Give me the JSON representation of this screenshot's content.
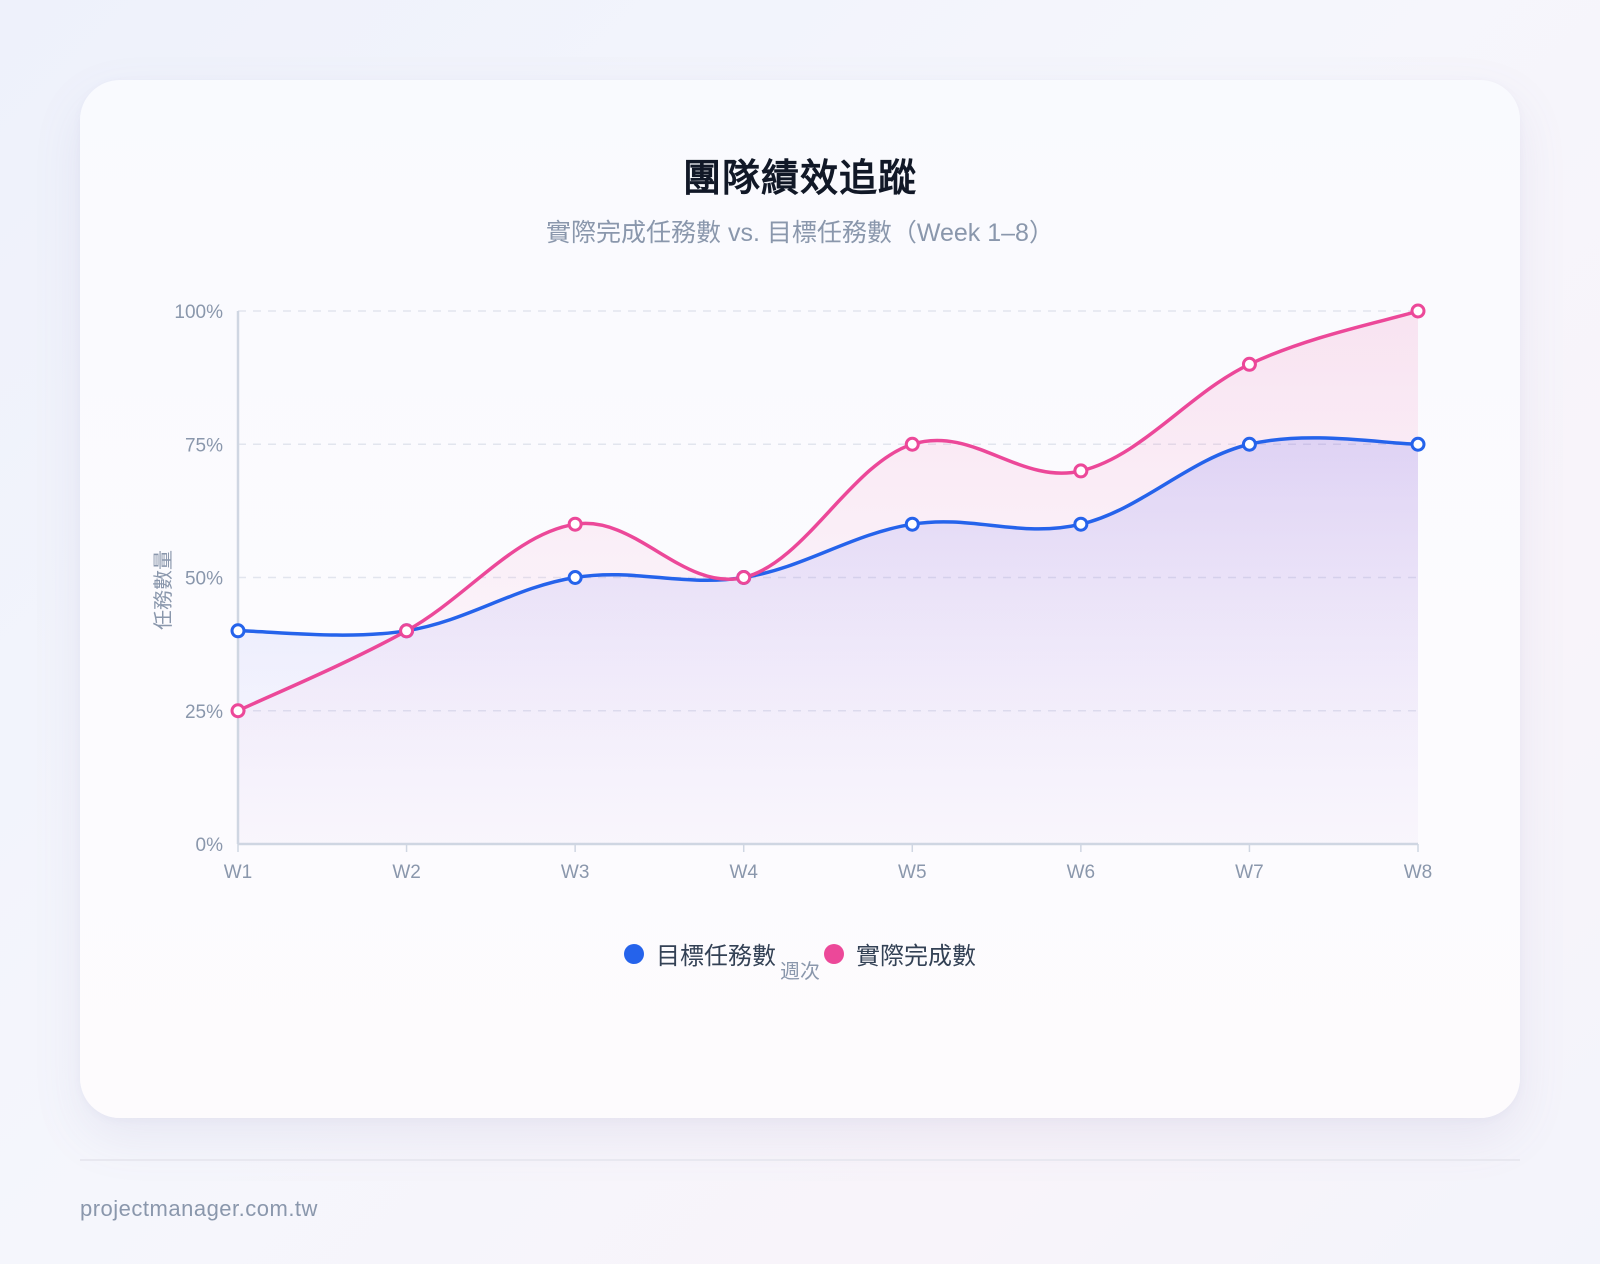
{
  "card": {
    "title": "團隊績效追蹤",
    "subtitle": "實際完成任務數 vs. 目標任務數（Week 1–8）"
  },
  "legend": {
    "items": [
      {
        "label": "目標任務數",
        "color": "#2563eb"
      },
      {
        "label": "實際完成數",
        "color": "#ec4899"
      }
    ]
  },
  "footer": {
    "site": "projectmanager.com.tw"
  },
  "chart_data": {
    "type": "area",
    "title": "團隊績效追蹤",
    "subtitle": "實際完成任務數 vs. 目標任務數（Week 1–8）",
    "xlabel": "週次",
    "ylabel": "任務數量",
    "categories": [
      "W1",
      "W2",
      "W3",
      "W4",
      "W5",
      "W6",
      "W7",
      "W8"
    ],
    "yticks": [
      "0%",
      "25%",
      "50%",
      "75%",
      "100%"
    ],
    "ylim": [
      0,
      100
    ],
    "grid": true,
    "legend_position": "bottom",
    "series": [
      {
        "name": "目標任務數",
        "color": "#2563eb",
        "values": [
          40,
          40,
          50,
          50,
          60,
          60,
          75,
          75
        ]
      },
      {
        "name": "實際完成數",
        "color": "#ec4899",
        "values": [
          25,
          40,
          60,
          50,
          75,
          70,
          90,
          100
        ]
      }
    ]
  }
}
